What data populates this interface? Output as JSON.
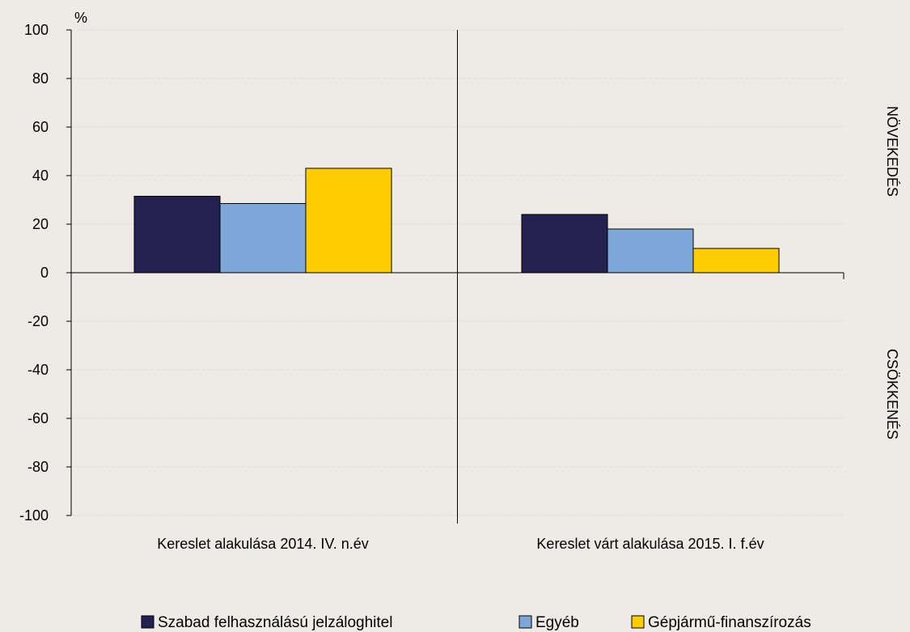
{
  "chart_data": {
    "type": "bar",
    "title": "",
    "ylabel": "%",
    "xlabel": "",
    "ylim": [
      -100,
      100
    ],
    "yticks": [
      100,
      80,
      60,
      40,
      20,
      0,
      -20,
      -40,
      -60,
      -80,
      -100
    ],
    "grid": true,
    "categories": [
      "Kereslet alakulása 2014. IV. n.év",
      "Kereslet várt alakulása 2015. I. f.év"
    ],
    "series": [
      {
        "name": "Szabad felhasználású jelzáloghitel",
        "values": [
          31.5,
          24
        ],
        "color": "#24204f"
      },
      {
        "name": "Egyéb",
        "values": [
          28.5,
          18
        ],
        "color": "#7da7d8"
      },
      {
        "name": "Gépjármű-finanszírozás",
        "values": [
          43,
          10
        ],
        "color": "#ffcc00"
      }
    ],
    "right_labels": {
      "top": "NÖVEKEDÉS",
      "bottom": "CSÖKKENÉS"
    },
    "legend_position": "bottom"
  }
}
